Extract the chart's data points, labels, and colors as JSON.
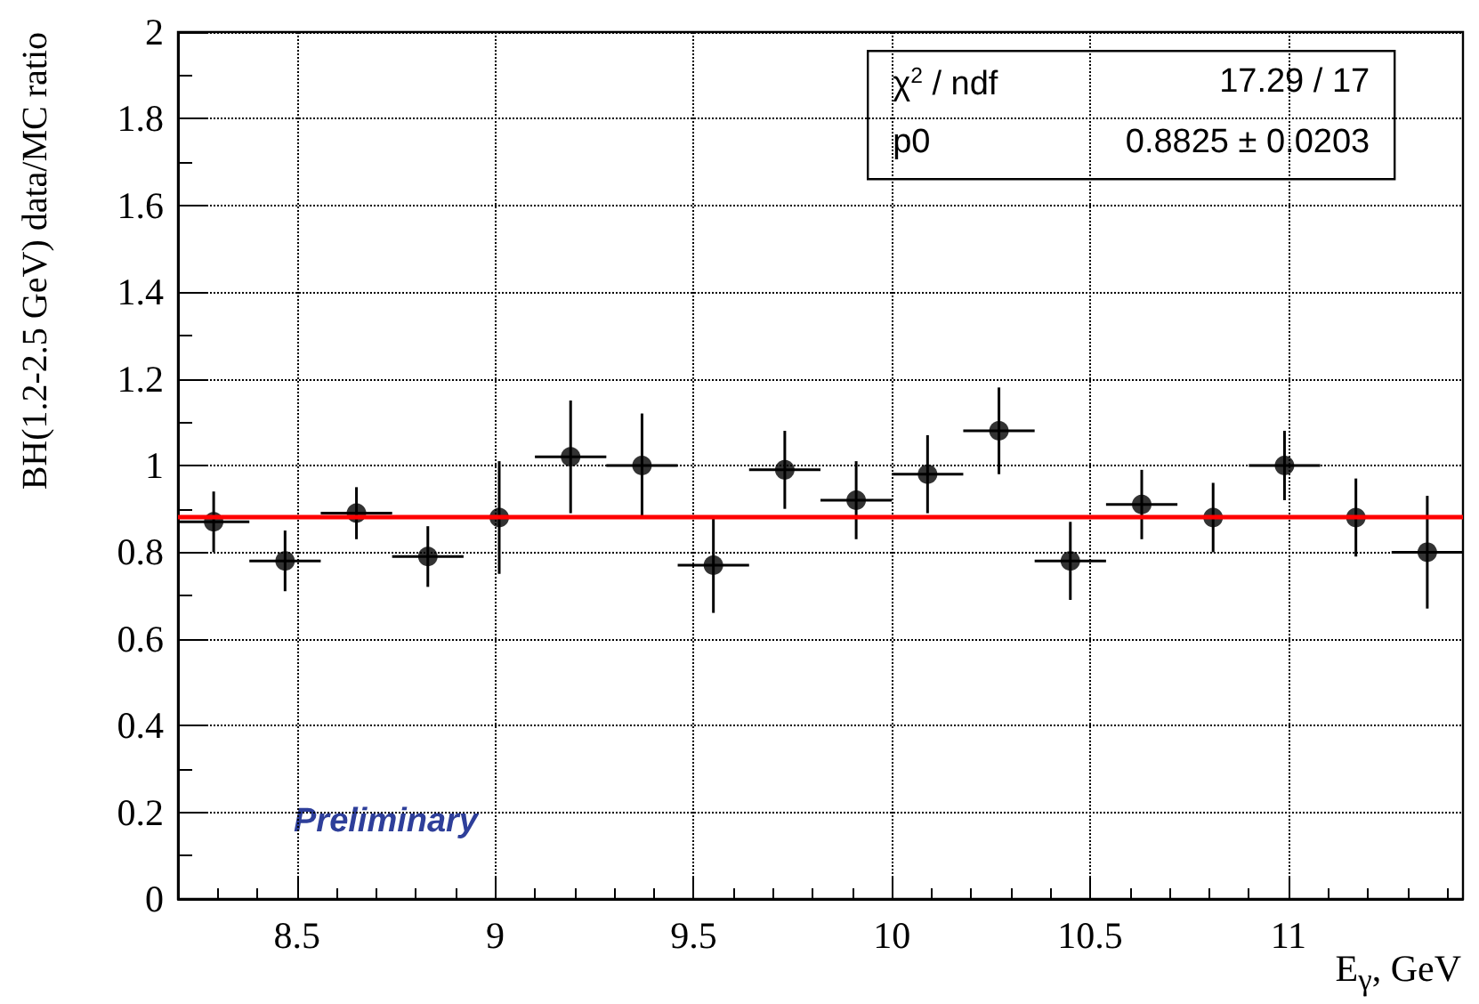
{
  "chart_data": {
    "type": "scatter",
    "xlabel": "E$_{γ}$, GeV",
    "ylabel": "BH(1.2-2.5 GeV) data/MC ratio",
    "x": [
      8.29,
      8.47,
      8.65,
      8.83,
      9.01,
      9.19,
      9.37,
      9.55,
      9.73,
      9.91,
      10.09,
      10.27,
      10.45,
      10.63,
      10.81,
      10.99,
      11.17,
      11.35
    ],
    "series": [
      {
        "color": "#000000",
        "values": [
          0.87,
          0.78,
          0.89,
          0.79,
          0.88,
          1.02,
          1.0,
          0.77,
          0.99,
          0.92,
          0.98,
          1.08,
          0.78,
          0.91,
          0.88,
          1.0,
          0.88,
          0.8
        ],
        "errors": [
          0.07,
          0.07,
          0.06,
          0.07,
          0.13,
          0.13,
          0.12,
          0.11,
          0.09,
          0.09,
          0.09,
          0.1,
          0.09,
          0.08,
          0.08,
          0.08,
          0.09,
          0.13
        ],
        "xerrors": [
          0.09,
          0.09,
          0.09,
          0.09,
          null,
          0.09,
          0.09,
          0.09,
          0.09,
          0.09,
          0.09,
          0.09,
          0.09,
          0.09,
          null,
          0.09,
          null,
          0.09
        ]
      }
    ],
    "xlim": [
      8.2,
      11.44
    ],
    "xticks": [
      8.5,
      9,
      9.5,
      10,
      10.5,
      11
    ],
    "ylim": [
      0,
      2
    ],
    "yticks": [
      0,
      0.2,
      0.4,
      0.6,
      0.8,
      1,
      1.2,
      1.4,
      1.6,
      1.8,
      2
    ],
    "ref_lines": [
      {
        "axis": "y",
        "value": 0.8825,
        "label": null,
        "color": "#ff0000",
        "line_style": "solid"
      }
    ],
    "annotations": [
      "χ$^{2}$ / ndf",
      "17.29 / 17",
      "p0",
      "0.8825 ± 0.0203",
      "Preliminary"
    ],
    "grid": true,
    "marker": "circle"
  }
}
